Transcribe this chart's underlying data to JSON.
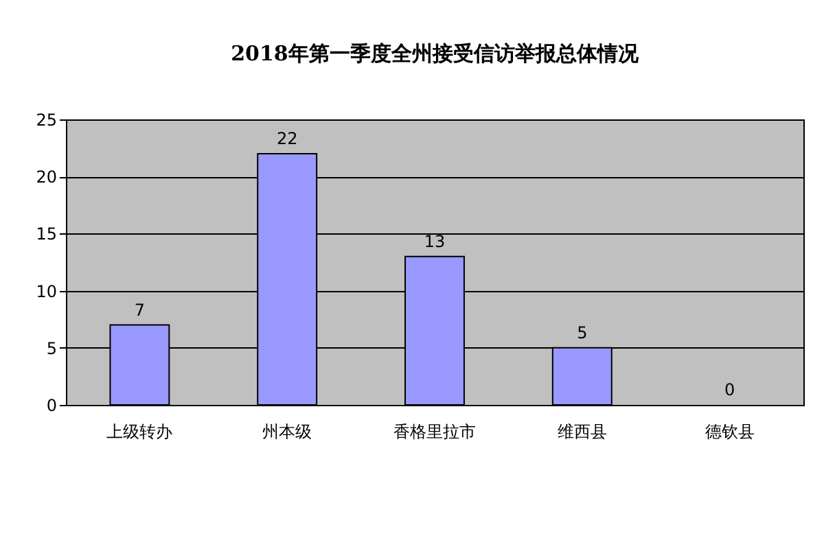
{
  "chart_data": {
    "type": "bar",
    "title": "2018年第一季度全州接受信访举报总体情况",
    "categories": [
      "上级转办",
      "州本级",
      "香格里拉市",
      "维西县",
      "德钦县"
    ],
    "values": [
      7,
      22,
      13,
      5,
      0
    ],
    "color": "#9999ff",
    "ylim": [
      0,
      25
    ],
    "yticks": [
      0,
      5,
      10,
      15,
      20,
      25
    ],
    "grid": true,
    "data_labels": true
  }
}
